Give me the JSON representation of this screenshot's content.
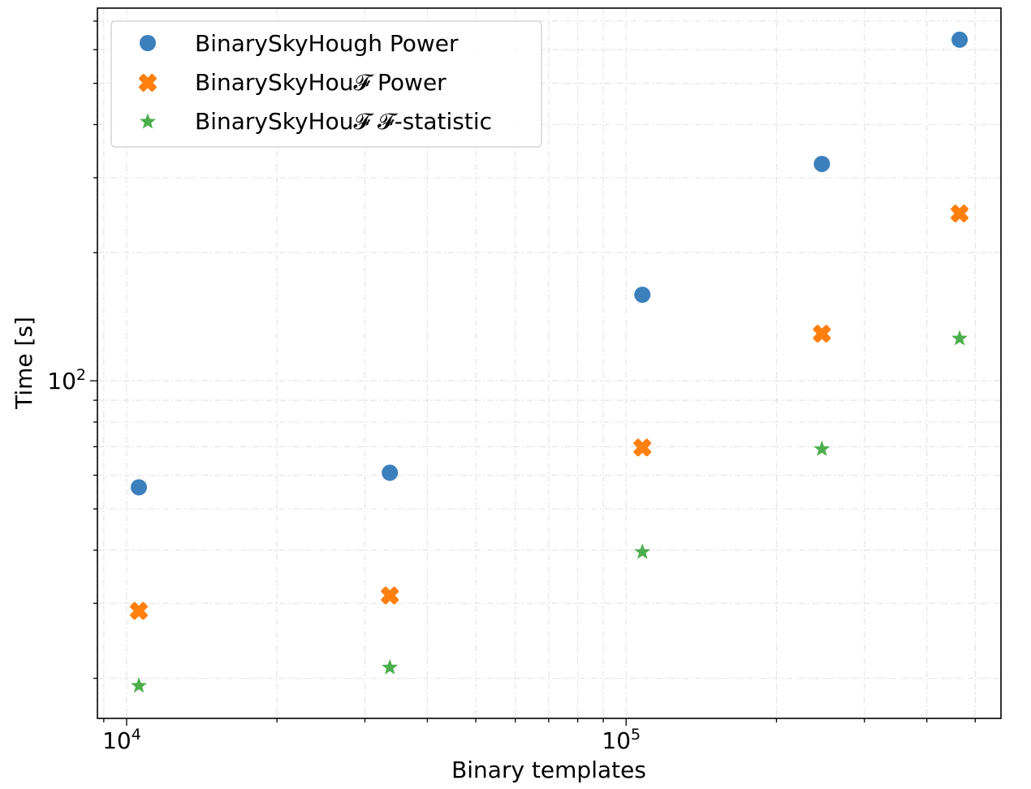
{
  "chart_data": {
    "type": "scatter",
    "title": "",
    "xlabel": "Binary templates",
    "ylabel": "Time [s]",
    "xscale": "log",
    "yscale": "log",
    "xlim": [
      8740,
      563000
    ],
    "ylim": [
      16.1,
      751
    ],
    "grid": true,
    "legend_position": "top-left",
    "x_major_ticks": [
      {
        "value": 10000,
        "base": "10",
        "exp": "4"
      },
      {
        "value": 100000,
        "base": "10",
        "exp": "5"
      }
    ],
    "y_major_ticks": [
      {
        "value": 100,
        "base": "10",
        "exp": "2"
      }
    ],
    "x_minor_ticks": [
      9000,
      20000,
      30000,
      40000,
      50000,
      60000,
      70000,
      80000,
      90000,
      200000,
      300000,
      400000,
      500000
    ],
    "y_minor_ticks": [
      20,
      30,
      40,
      50,
      60,
      70,
      80,
      90,
      200,
      300,
      400,
      500,
      600,
      700
    ],
    "series": [
      {
        "name": "BinarySkyHough Power",
        "marker": "circle",
        "color": "#3b7fbd",
        "x": [
          10580,
          33650,
          107800,
          246600,
          465300
        ],
        "y": [
          56.2,
          60.8,
          159.3,
          323.2,
          633
        ]
      },
      {
        "name": "BinarySkyHou𝓕 Power",
        "marker": "x-filled",
        "color": "#ff7f0e",
        "x": [
          10580,
          33650,
          107800,
          246600,
          465300
        ],
        "y": [
          28.8,
          31.3,
          69.7,
          129.0,
          247.2
        ]
      },
      {
        "name": "BinarySkyHou𝓕 𝓕-statistic",
        "marker": "star",
        "color": "#4cae4c",
        "x": [
          10580,
          33650,
          107800,
          246600,
          465300
        ],
        "y": [
          19.2,
          21.2,
          39.6,
          69.1,
          125.7
        ]
      }
    ]
  }
}
